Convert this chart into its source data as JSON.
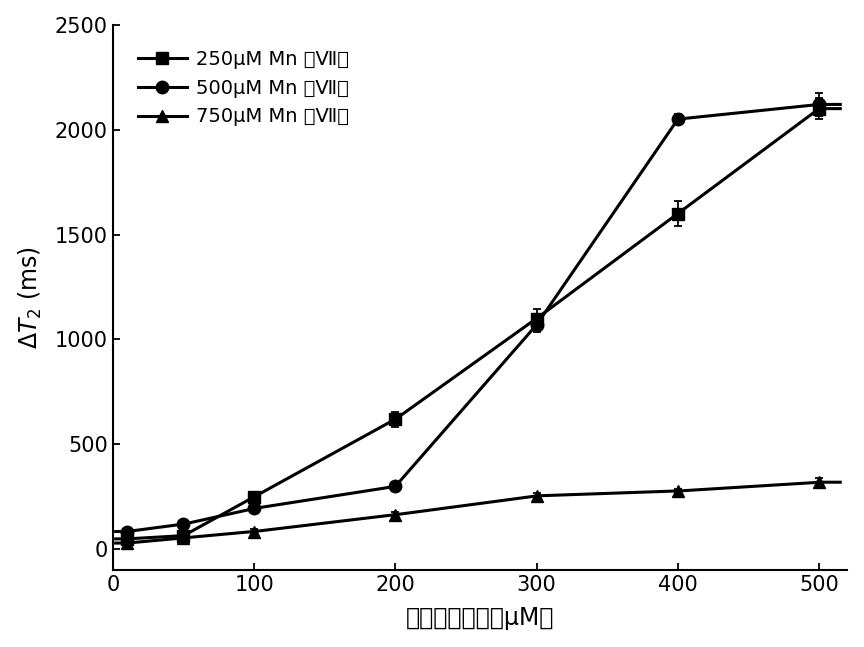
{
  "x_data": [
    10,
    50,
    100,
    200,
    300,
    400,
    500
  ],
  "series": [
    {
      "label": "250μM Mn （Ⅶ）",
      "marker": "s",
      "y": [
        50,
        65,
        250,
        620,
        1100,
        1600,
        2100
      ],
      "yerr": [
        15,
        15,
        20,
        35,
        45,
        60,
        50
      ]
    },
    {
      "label": "500μM Mn （Ⅶ）",
      "marker": "o",
      "y": [
        85,
        120,
        195,
        300,
        1070,
        2050,
        2120
      ],
      "yerr": [
        12,
        15,
        18,
        20,
        35,
        25,
        55
      ]
    },
    {
      "label": "750μM Mn （Ⅶ）",
      "marker": "^",
      "y": [
        30,
        55,
        85,
        165,
        255,
        278,
        320
      ],
      "yerr": [
        8,
        10,
        12,
        15,
        12,
        12,
        18
      ]
    }
  ],
  "xlabel": "抗坏血酸浓度（μM）",
  "xlim": [
    0,
    520
  ],
  "ylim": [
    -100,
    2500
  ],
  "yticks": [
    0,
    500,
    1000,
    1500,
    2000,
    2500
  ],
  "xticks": [
    0,
    100,
    200,
    300,
    400,
    500
  ],
  "background_color": "#ffffff",
  "label_fontsize": 17,
  "tick_fontsize": 15,
  "legend_fontsize": 14,
  "linewidth": 2.2,
  "markersizes": [
    8,
    9,
    8
  ]
}
